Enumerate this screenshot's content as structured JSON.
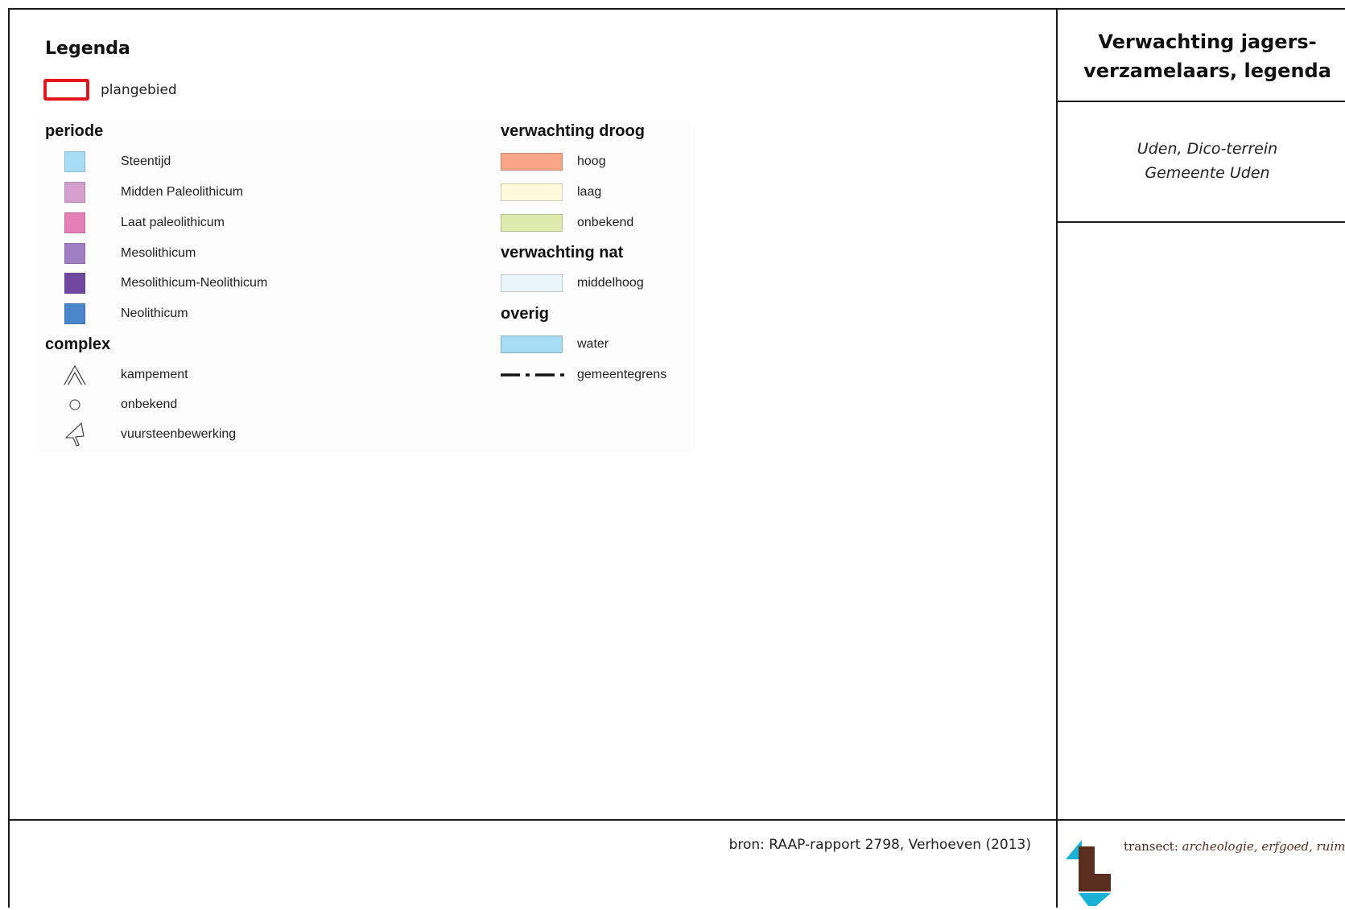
{
  "legend": {
    "title": "Legenda",
    "plangebied_label": "plangebied",
    "plangebied_color": "#e4141b"
  },
  "periode": {
    "heading": "periode",
    "items": [
      {
        "label": "Steentijd",
        "color": "#a6dcf4"
      },
      {
        "label": "Midden Paleolithicum",
        "color": "#d39fcd"
      },
      {
        "label": "Laat paleolithicum",
        "color": "#e47fb8"
      },
      {
        "label": "Mesolithicum",
        "color": "#a07fc2"
      },
      {
        "label": "Mesolithicum-Neolithicum",
        "color": "#7048a0"
      },
      {
        "label": "Neolithicum",
        "color": "#4986cc"
      }
    ]
  },
  "complex": {
    "heading": "complex",
    "items": [
      {
        "label": "kampement",
        "icon": "triangle-icon"
      },
      {
        "label": "onbekend",
        "icon": "circle-icon"
      },
      {
        "label": "vuursteenbewerking",
        "icon": "arrow-cursor-icon"
      }
    ]
  },
  "verwachting_droog": {
    "heading": "verwachting droog",
    "items": [
      {
        "label": "hoog",
        "color": "#f7a585"
      },
      {
        "label": "laag",
        "color": "#fdf9d9"
      },
      {
        "label": "onbekend",
        "color": "#dfeaaf"
      }
    ]
  },
  "verwachting_nat": {
    "heading": "verwachting nat",
    "items": [
      {
        "label": "middelhoog",
        "color": "#eaf4fb"
      }
    ]
  },
  "overig": {
    "heading": "overig",
    "items": [
      {
        "label": "water",
        "color": "#a6dcf4"
      },
      {
        "label": "gemeentegrens",
        "icon": "dash-dot-line-icon"
      }
    ]
  },
  "titleblock": {
    "title_line1": "Verwachting jagers-",
    "title_line2": "verzamelaars, legenda",
    "location_line1": "Uden, Dico-terrein",
    "location_line2": "Gemeente Uden"
  },
  "footer": {
    "source": "bron: RAAP-rapport 2798, Verhoeven (2013)",
    "logo_name": "transect",
    "logo_tagline": "archeologie, erfgoed, ruimte",
    "logo_colors": {
      "brown": "#5a2e1e",
      "cyan": "#19b2d6"
    }
  }
}
